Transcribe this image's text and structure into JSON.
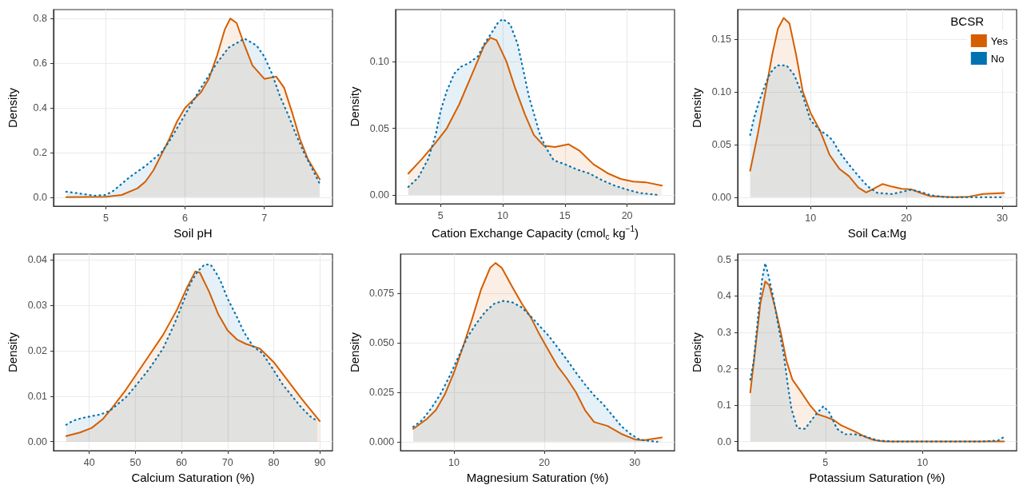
{
  "chart_data": [
    {
      "type": "area",
      "xlabel": "Soil pH",
      "ylabel": "Density",
      "xlim": [
        4.34,
        7.86
      ],
      "xticks": [
        5,
        6,
        7
      ],
      "ylim": [
        -0.04,
        0.84
      ],
      "yticks": [
        {
          "value": 0,
          "label": "0.0"
        },
        0.2,
        0.4,
        0.6,
        0.8
      ],
      "grid": true,
      "legend": false,
      "marker": "none",
      "series": [
        {
          "color": "#d55e00",
          "line_style": "solid",
          "x": [
            4.5,
            5.0,
            5.2,
            5.4,
            5.5,
            5.6,
            5.8,
            5.9,
            6.0,
            6.2,
            6.3,
            6.4,
            6.5,
            6.57,
            6.65,
            6.75,
            6.85,
            7.0,
            7.15,
            7.25,
            7.35,
            7.45,
            7.55,
            7.7
          ],
          "values": [
            0,
            0.002,
            0.01,
            0.04,
            0.07,
            0.12,
            0.26,
            0.34,
            0.4,
            0.47,
            0.53,
            0.63,
            0.75,
            0.8,
            0.78,
            0.68,
            0.59,
            0.53,
            0.54,
            0.49,
            0.38,
            0.26,
            0.17,
            0.08
          ]
        },
        {
          "color": "#0072b2",
          "line_style": "dotted",
          "x": [
            4.5,
            4.7,
            4.85,
            5.0,
            5.1,
            5.3,
            5.5,
            5.7,
            5.8,
            6.0,
            6.2,
            6.4,
            6.55,
            6.75,
            6.9,
            7.0,
            7.1,
            7.2,
            7.3,
            7.4,
            7.5,
            7.6,
            7.7
          ],
          "values": [
            0.025,
            0.015,
            0.007,
            0.01,
            0.03,
            0.09,
            0.14,
            0.2,
            0.25,
            0.37,
            0.49,
            0.6,
            0.67,
            0.71,
            0.68,
            0.63,
            0.55,
            0.45,
            0.37,
            0.28,
            0.2,
            0.13,
            0.06
          ]
        }
      ]
    },
    {
      "type": "area",
      "xlabel": "Cation Exchange Capacity (cmol$_{c}$ kg$^{−1}$)",
      "ylabel": "Density",
      "xlim": [
        1.38,
        23.82
      ],
      "xticks": [
        5,
        10,
        15,
        20
      ],
      "ylim": [
        -0.0066,
        0.139
      ],
      "yticks": [
        {
          "value": 0,
          "label": "0.00"
        },
        0.05,
        {
          "value": 0.1,
          "label": "0.10"
        }
      ],
      "grid": true,
      "legend": false,
      "marker": "none",
      "series": [
        {
          "color": "#d55e00",
          "line_style": "solid",
          "x": [
            2.4,
            3.5,
            4.5,
            5.5,
            6.5,
            7.5,
            8.5,
            9,
            9.5,
            10.3,
            11,
            11.8,
            12.5,
            13.3,
            14.2,
            15.3,
            16.2,
            17.3,
            18.5,
            19.5,
            20.5,
            21.5,
            22.8
          ],
          "values": [
            0.016,
            0.027,
            0.038,
            0.05,
            0.068,
            0.09,
            0.112,
            0.118,
            0.116,
            0.1,
            0.08,
            0.06,
            0.045,
            0.037,
            0.036,
            0.038,
            0.033,
            0.023,
            0.016,
            0.012,
            0.01,
            0.0095,
            0.007
          ]
        },
        {
          "color": "#0072b2",
          "line_style": "dotted",
          "x": [
            2.4,
            3.2,
            4,
            4.6,
            5,
            5.5,
            6.1,
            6.6,
            7.3,
            8,
            8.5,
            9.2,
            9.6,
            10,
            10.6,
            11.2,
            11.6,
            12.1,
            12.6,
            13,
            13.5,
            14.1,
            15,
            16,
            17,
            18,
            19,
            20,
            21,
            22.5
          ],
          "values": [
            0.006,
            0.013,
            0.027,
            0.045,
            0.063,
            0.078,
            0.091,
            0.096,
            0.099,
            0.104,
            0.113,
            0.123,
            0.129,
            0.132,
            0.128,
            0.113,
            0.096,
            0.074,
            0.058,
            0.045,
            0.035,
            0.026,
            0.023,
            0.019,
            0.016,
            0.011,
            0.007,
            0.004,
            0.0015,
            0
          ]
        }
      ]
    },
    {
      "type": "area",
      "xlabel": "Soil Ca:Mg",
      "ylabel": "Density",
      "xlim": [
        2.4,
        31.5
      ],
      "xticks": [
        10,
        20,
        30
      ],
      "ylim": [
        -0.0085,
        0.178
      ],
      "yticks": [
        {
          "value": 0,
          "label": "0.00"
        },
        0.05,
        {
          "value": 0.1,
          "label": "0.10"
        },
        0.15
      ],
      "grid": true,
      "legend": "top right",
      "legend_title": "BCSR",
      "marker": "none",
      "series": [
        {
          "name": "Yes",
          "color": "#d55e00",
          "line_style": "solid",
          "x": [
            3.7,
            4.5,
            5.3,
            6,
            6.6,
            7.2,
            7.8,
            8.5,
            9.2,
            10,
            11,
            12,
            13,
            14,
            15,
            15.8,
            16.6,
            17.5,
            18.5,
            19.5,
            20.5,
            21.5,
            22.5,
            25,
            26.5,
            28,
            30.2
          ],
          "values": [
            0.025,
            0.06,
            0.1,
            0.135,
            0.16,
            0.17,
            0.165,
            0.135,
            0.1,
            0.08,
            0.063,
            0.04,
            0.027,
            0.02,
            0.009,
            0.0045,
            0.008,
            0.0125,
            0.01,
            0.008,
            0.0075,
            0.004,
            0.001,
            0,
            0.0005,
            0.003,
            0.004
          ]
        },
        {
          "name": "No",
          "color": "#0072b2",
          "line_style": "dotted",
          "x": [
            3.7,
            4.1,
            4.6,
            5.2,
            5.8,
            6.5,
            7.5,
            8.3,
            9.2,
            10,
            11,
            11.6,
            12.3,
            13,
            14,
            15,
            16,
            17,
            18.5,
            19.5,
            20.5,
            21.5,
            22.5,
            24,
            30
          ],
          "values": [
            0.059,
            0.075,
            0.09,
            0.105,
            0.118,
            0.125,
            0.125,
            0.116,
            0.096,
            0.073,
            0.063,
            0.06,
            0.054,
            0.043,
            0.031,
            0.02,
            0.01,
            0.004,
            0.003,
            0.005,
            0.007,
            0.005,
            0.002,
            0,
            0
          ]
        }
      ]
    },
    {
      "type": "area",
      "xlabel": "Calcium Saturation (%)",
      "ylabel": "Density",
      "xlim": [
        32.25,
        92.75
      ],
      "xticks": [
        40,
        50,
        60,
        70,
        80,
        90
      ],
      "ylim": [
        -0.002,
        0.0413
      ],
      "yticks": [
        {
          "value": 0,
          "label": "0.00"
        },
        0.01,
        0.02,
        0.03,
        0.04
      ],
      "grid": true,
      "legend": false,
      "marker": "none",
      "series": [
        {
          "color": "#d55e00",
          "line_style": "solid",
          "x": [
            35,
            38,
            40.5,
            43,
            45,
            48,
            50,
            53,
            56,
            59,
            61,
            63,
            64,
            66,
            68,
            70,
            72,
            74,
            77,
            80,
            83,
            86,
            88,
            90
          ],
          "values": [
            0.0012,
            0.002,
            0.003,
            0.005,
            0.0075,
            0.0115,
            0.0145,
            0.019,
            0.0235,
            0.029,
            0.0335,
            0.0375,
            0.0372,
            0.033,
            0.028,
            0.0245,
            0.0225,
            0.0215,
            0.0205,
            0.0175,
            0.0135,
            0.0095,
            0.007,
            0.0045
          ]
        },
        {
          "color": "#0072b2",
          "line_style": "dotted",
          "x": [
            35,
            36.5,
            38.5,
            40.5,
            42.5,
            44.5,
            46,
            48,
            50,
            53,
            56,
            58.5,
            60,
            62,
            63.5,
            65,
            66.3,
            67.5,
            68.5,
            70,
            71,
            72,
            73.5,
            75.5,
            77.5,
            79.5,
            82,
            84,
            86,
            88,
            89.5
          ],
          "values": [
            0.0037,
            0.0046,
            0.0052,
            0.0056,
            0.006,
            0.0068,
            0.0081,
            0.0098,
            0.0122,
            0.016,
            0.0205,
            0.026,
            0.0298,
            0.035,
            0.0375,
            0.039,
            0.039,
            0.0372,
            0.0353,
            0.0315,
            0.0295,
            0.0275,
            0.0242,
            0.021,
            0.0195,
            0.0165,
            0.0125,
            0.01,
            0.0075,
            0.0055,
            0.0045
          ]
        }
      ]
    },
    {
      "type": "area",
      "xlabel": "Magnesium Saturation (%)",
      "ylabel": "Density",
      "xlim": [
        4.1,
        34.4
      ],
      "xticks": [
        10,
        20,
        30
      ],
      "ylim": [
        -0.0045,
        0.095
      ],
      "yticks": [
        {
          "value": 0,
          "label": "0.000"
        },
        0.025,
        {
          "value": 0.05,
          "label": "0.050"
        },
        0.075
      ],
      "grid": true,
      "legend": false,
      "marker": "none",
      "series": [
        {
          "color": "#d55e00",
          "line_style": "solid",
          "x": [
            5.5,
            7,
            8,
            9,
            10,
            11,
            12,
            13,
            14,
            14.6,
            15.3,
            16.5,
            17.5,
            18.5,
            19.5,
            20.5,
            21.5,
            22.5,
            23.5,
            24.5,
            25.5,
            27,
            28.5,
            30,
            31,
            33
          ],
          "values": [
            0.0065,
            0.0115,
            0.016,
            0.024,
            0.035,
            0.048,
            0.062,
            0.077,
            0.088,
            0.0905,
            0.088,
            0.078,
            0.07,
            0.063,
            0.054,
            0.046,
            0.038,
            0.032,
            0.025,
            0.016,
            0.01,
            0.008,
            0.004,
            0.0012,
            0.0008,
            0.0022
          ]
        },
        {
          "color": "#0072b2",
          "line_style": "dotted",
          "x": [
            5.5,
            6.5,
            7.5,
            8.5,
            9.5,
            10.5,
            11.5,
            12.5,
            13.5,
            14.5,
            15.5,
            16.5,
            17.5,
            18.5,
            19.5,
            20.5,
            21.5,
            22.5,
            23.5,
            24.5,
            25.5,
            26.5,
            27.5,
            28.5,
            29.5,
            30.5,
            31.5,
            32.5
          ],
          "values": [
            0.0075,
            0.011,
            0.017,
            0.024,
            0.033,
            0.043,
            0.053,
            0.06,
            0.066,
            0.07,
            0.0713,
            0.0705,
            0.068,
            0.0635,
            0.0585,
            0.0535,
            0.0475,
            0.0415,
            0.035,
            0.029,
            0.0235,
            0.019,
            0.0135,
            0.008,
            0.004,
            0.0012,
            0.0005,
            0
          ]
        }
      ]
    },
    {
      "type": "area",
      "xlabel": "Potassium Saturation (%)",
      "ylabel": "Density",
      "xlim": [
        0.48,
        14.85
      ],
      "xticks": [
        5,
        10
      ],
      "ylim": [
        -0.025,
        0.515
      ],
      "yticks": [
        {
          "value": 0,
          "label": "0.0"
        },
        0.1,
        0.2,
        0.3,
        0.4,
        0.5
      ],
      "grid": true,
      "legend": false,
      "marker": "none",
      "series": [
        {
          "color": "#d55e00",
          "line_style": "solid",
          "x": [
            1.13,
            1.4,
            1.65,
            1.9,
            2.1,
            2.4,
            2.7,
            3,
            3.3,
            3.7,
            4.2,
            4.6,
            5,
            5.4,
            5.8,
            6.5,
            7,
            7.5,
            8,
            14.2
          ],
          "values": [
            0.135,
            0.26,
            0.38,
            0.44,
            0.43,
            0.37,
            0.3,
            0.22,
            0.17,
            0.14,
            0.1,
            0.075,
            0.068,
            0.06,
            0.045,
            0.028,
            0.014,
            0.004,
            0,
            0
          ]
        },
        {
          "color": "#0072b2",
          "line_style": "dotted",
          "x": [
            1.13,
            1.3,
            1.45,
            1.6,
            1.75,
            1.9,
            2.05,
            2.3,
            2.6,
            2.85,
            3.05,
            3.25,
            3.55,
            3.95,
            4.3,
            4.6,
            4.9,
            5.2,
            5.6,
            6,
            6.5,
            7,
            7.7,
            8.5,
            13,
            13.9,
            14.2
          ],
          "values": [
            0.17,
            0.22,
            0.3,
            0.38,
            0.45,
            0.49,
            0.46,
            0.4,
            0.31,
            0.24,
            0.16,
            0.09,
            0.037,
            0.035,
            0.06,
            0.08,
            0.097,
            0.08,
            0.035,
            0.02,
            0.02,
            0.015,
            0.003,
            0,
            0,
            0.003,
            0.013
          ]
        }
      ]
    }
  ]
}
